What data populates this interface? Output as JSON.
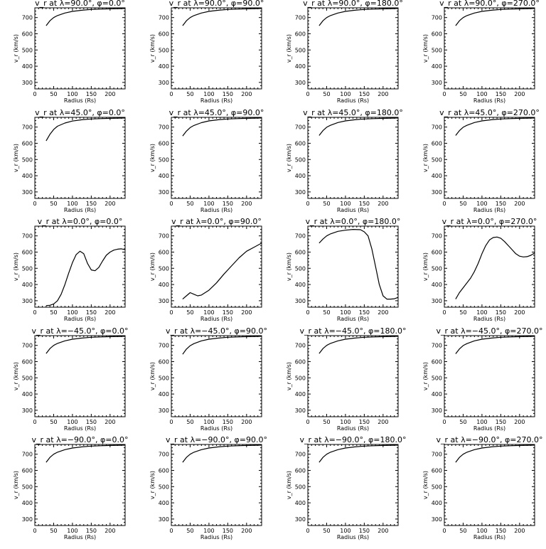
{
  "figure": {
    "panel_titles": [
      "v_r at λ=90.0°, φ=0.0°",
      "v_r at λ=90.0°, φ=90.0°",
      "v_r at λ=90.0°, φ=180.0°",
      "v_r at λ=90.0°, φ=270.0°",
      "v_r at λ=45.0°, φ=0.0°",
      "v_r at λ=45.0°, φ=90.0°",
      "v_r at λ=45.0°, φ=180.0°",
      "v_r at λ=45.0°, φ=270.0°",
      "v_r at λ=0.0°, φ=0.0°",
      "v_r at λ=0.0°, φ=90.0°",
      "v_r at λ=0.0°, φ=180.0°",
      "v_r at λ=0.0°, φ=270.0°",
      "v_r at λ=−45.0°, φ=0.0°",
      "v_r at λ=−45.0°, φ=90.0°",
      "v_r at λ=−45.0°, φ=180.0°",
      "v_r at λ=−45.0°, φ=270.0°",
      "v_r at λ=−90.0°, φ=0.0°",
      "v_r at λ=−90.0°, φ=90.0°",
      "v_r at λ=−90.0°, φ=180.0°",
      "v_r at λ=−90.0°, φ=270.0°"
    ]
  },
  "chart_data": [
    {
      "type": "line",
      "title": "v_r at λ=90.0°, φ=0.0°",
      "xlabel": "Radius (Rs)",
      "ylabel": "v_r (km/s)",
      "xlim": [
        0,
        240
      ],
      "ylim": [
        260,
        760
      ],
      "xticks": [
        0,
        50,
        100,
        150,
        200
      ],
      "yticks": [
        300,
        400,
        500,
        600,
        700
      ],
      "x": [
        30,
        40,
        50,
        60,
        80,
        100,
        125,
        150,
        175,
        200,
        225,
        240
      ],
      "y": [
        650,
        680,
        700,
        712,
        728,
        738,
        745,
        750,
        752,
        754,
        755,
        756
      ]
    },
    {
      "type": "line",
      "title": "v_r at λ=90.0°, φ=90.0°",
      "xlabel": "Radius (Rs)",
      "ylabel": "v_r (km/s)",
      "xlim": [
        0,
        240
      ],
      "ylim": [
        260,
        760
      ],
      "xticks": [
        0,
        50,
        100,
        150,
        200
      ],
      "yticks": [
        300,
        400,
        500,
        600,
        700
      ],
      "x": [
        30,
        40,
        50,
        60,
        80,
        100,
        125,
        150,
        175,
        200,
        225,
        240
      ],
      "y": [
        650,
        680,
        700,
        712,
        728,
        738,
        745,
        750,
        752,
        754,
        755,
        756
      ]
    },
    {
      "type": "line",
      "title": "v_r at λ=90.0°, φ=180.0°",
      "xlabel": "Radius (Rs)",
      "ylabel": "v_r (km/s)",
      "xlim": [
        0,
        240
      ],
      "ylim": [
        260,
        760
      ],
      "xticks": [
        0,
        50,
        100,
        150,
        200
      ],
      "yticks": [
        300,
        400,
        500,
        600,
        700
      ],
      "x": [
        30,
        40,
        50,
        60,
        80,
        100,
        125,
        150,
        175,
        200,
        225,
        240
      ],
      "y": [
        650,
        680,
        700,
        712,
        728,
        738,
        745,
        750,
        752,
        754,
        755,
        756
      ]
    },
    {
      "type": "line",
      "title": "v_r at λ=90.0°, φ=270.0°",
      "xlabel": "Radius (Rs)",
      "ylabel": "v_r (km/s)",
      "xlim": [
        0,
        240
      ],
      "ylim": [
        260,
        760
      ],
      "xticks": [
        0,
        50,
        100,
        150,
        200
      ],
      "yticks": [
        300,
        400,
        500,
        600,
        700
      ],
      "x": [
        30,
        40,
        50,
        60,
        80,
        100,
        125,
        150,
        175,
        200,
        225,
        240
      ],
      "y": [
        650,
        680,
        700,
        712,
        728,
        738,
        745,
        750,
        752,
        754,
        755,
        756
      ]
    },
    {
      "type": "line",
      "title": "v_r at λ=45.0°, φ=0.0°",
      "xlabel": "Radius (Rs)",
      "ylabel": "v_r (km/s)",
      "xlim": [
        0,
        240
      ],
      "ylim": [
        260,
        760
      ],
      "xticks": [
        0,
        50,
        100,
        150,
        200
      ],
      "yticks": [
        300,
        400,
        500,
        600,
        700
      ],
      "x": [
        30,
        40,
        50,
        60,
        80,
        100,
        125,
        150,
        175,
        200,
        225,
        240
      ],
      "y": [
        615,
        655,
        685,
        705,
        725,
        737,
        745,
        750,
        752,
        754,
        755,
        756
      ]
    },
    {
      "type": "line",
      "title": "v_r at λ=45.0°, φ=90.0°",
      "xlabel": "Radius (Rs)",
      "ylabel": "v_r (km/s)",
      "xlim": [
        0,
        240
      ],
      "ylim": [
        260,
        760
      ],
      "xticks": [
        0,
        50,
        100,
        150,
        200
      ],
      "yticks": [
        300,
        400,
        500,
        600,
        700
      ],
      "x": [
        30,
        40,
        50,
        60,
        80,
        100,
        125,
        150,
        175,
        200,
        225,
        240
      ],
      "y": [
        645,
        675,
        697,
        710,
        727,
        738,
        745,
        750,
        752,
        754,
        755,
        756
      ]
    },
    {
      "type": "line",
      "title": "v_r at λ=45.0°, φ=180.0°",
      "xlabel": "Radius (Rs)",
      "ylabel": "v_r (km/s)",
      "xlim": [
        0,
        240
      ],
      "ylim": [
        260,
        760
      ],
      "xticks": [
        0,
        50,
        100,
        150,
        200
      ],
      "yticks": [
        300,
        400,
        500,
        600,
        700
      ],
      "x": [
        30,
        40,
        50,
        60,
        80,
        100,
        125,
        150,
        175,
        200,
        225,
        240
      ],
      "y": [
        648,
        678,
        699,
        711,
        728,
        738,
        745,
        750,
        752,
        754,
        755,
        756
      ]
    },
    {
      "type": "line",
      "title": "v_r at λ=45.0°, φ=270.0°",
      "xlabel": "Radius (Rs)",
      "ylabel": "v_r (km/s)",
      "xlim": [
        0,
        240
      ],
      "ylim": [
        260,
        760
      ],
      "xticks": [
        0,
        50,
        100,
        150,
        200
      ],
      "yticks": [
        300,
        400,
        500,
        600,
        700
      ],
      "x": [
        30,
        40,
        50,
        60,
        80,
        100,
        125,
        150,
        175,
        200,
        225,
        240
      ],
      "y": [
        648,
        678,
        699,
        711,
        728,
        738,
        745,
        750,
        752,
        754,
        755,
        756
      ]
    },
    {
      "type": "line",
      "title": "v_r at λ=0.0°, φ=0.0°",
      "xlabel": "Radius (Rs)",
      "ylabel": "v_r (km/s)",
      "xlim": [
        0,
        240
      ],
      "ylim": [
        260,
        760
      ],
      "xticks": [
        0,
        50,
        100,
        150,
        200
      ],
      "yticks": [
        300,
        400,
        500,
        600,
        700
      ],
      "x": [
        30,
        40,
        50,
        60,
        70,
        80,
        90,
        100,
        110,
        120,
        130,
        140,
        150,
        160,
        170,
        180,
        190,
        200,
        210,
        220,
        230,
        240
      ],
      "y": [
        270,
        272,
        280,
        300,
        340,
        400,
        470,
        535,
        585,
        605,
        590,
        530,
        490,
        485,
        505,
        545,
        580,
        600,
        612,
        618,
        620,
        615
      ]
    },
    {
      "type": "line",
      "title": "v_r at λ=0.0°, φ=90.0°",
      "xlabel": "Radius (Rs)",
      "ylabel": "v_r (km/s)",
      "xlim": [
        0,
        240
      ],
      "ylim": [
        260,
        760
      ],
      "xticks": [
        0,
        50,
        100,
        150,
        200
      ],
      "yticks": [
        300,
        400,
        500,
        600,
        700
      ],
      "x": [
        30,
        40,
        50,
        60,
        70,
        80,
        100,
        120,
        140,
        160,
        180,
        200,
        220,
        240
      ],
      "y": [
        310,
        330,
        350,
        340,
        330,
        335,
        365,
        410,
        465,
        515,
        565,
        605,
        630,
        655
      ]
    },
    {
      "type": "line",
      "title": "v_r at λ=0.0°, φ=180.0°",
      "xlabel": "Radius (Rs)",
      "ylabel": "v_r (km/s)",
      "xlim": [
        0,
        240
      ],
      "ylim": [
        260,
        760
      ],
      "xticks": [
        0,
        50,
        100,
        150,
        200
      ],
      "yticks": [
        300,
        400,
        500,
        600,
        700
      ],
      "x": [
        30,
        40,
        50,
        60,
        80,
        100,
        120,
        140,
        150,
        160,
        170,
        180,
        190,
        200,
        210,
        220,
        230,
        240
      ],
      "y": [
        655,
        680,
        700,
        712,
        728,
        735,
        740,
        738,
        725,
        700,
        620,
        510,
        400,
        330,
        310,
        310,
        312,
        320
      ]
    },
    {
      "type": "line",
      "title": "v_r at λ=0.0°, φ=270.0°",
      "xlabel": "Radius (Rs)",
      "ylabel": "v_r (km/s)",
      "xlim": [
        0,
        240
      ],
      "ylim": [
        260,
        760
      ],
      "xticks": [
        0,
        50,
        100,
        150,
        200
      ],
      "yticks": [
        300,
        400,
        500,
        600,
        700
      ],
      "x": [
        30,
        40,
        50,
        60,
        70,
        80,
        90,
        100,
        110,
        120,
        130,
        140,
        150,
        160,
        170,
        180,
        190,
        200,
        210,
        220,
        230,
        240
      ],
      "y": [
        310,
        350,
        380,
        410,
        440,
        480,
        530,
        590,
        640,
        675,
        690,
        693,
        685,
        665,
        640,
        615,
        590,
        575,
        570,
        572,
        580,
        595
      ]
    },
    {
      "type": "line",
      "title": "v_r at λ=−45.0°, φ=0.0°",
      "xlabel": "Radius (Rs)",
      "ylabel": "v_r (km/s)",
      "xlim": [
        0,
        240
      ],
      "ylim": [
        260,
        760
      ],
      "xticks": [
        0,
        50,
        100,
        150,
        200
      ],
      "yticks": [
        300,
        400,
        500,
        600,
        700
      ],
      "x": [
        30,
        40,
        50,
        60,
        80,
        100,
        125,
        150,
        175,
        200,
        225,
        240
      ],
      "y": [
        650,
        680,
        700,
        712,
        728,
        738,
        745,
        750,
        752,
        754,
        755,
        756
      ]
    },
    {
      "type": "line",
      "title": "v_r at λ=−45.0°, φ=90.0°",
      "xlabel": "Radius (Rs)",
      "ylabel": "v_r (km/s)",
      "xlim": [
        0,
        240
      ],
      "ylim": [
        260,
        760
      ],
      "xticks": [
        0,
        50,
        100,
        150,
        200
      ],
      "yticks": [
        300,
        400,
        500,
        600,
        700
      ],
      "x": [
        30,
        40,
        50,
        60,
        80,
        100,
        125,
        150,
        175,
        200,
        225,
        240
      ],
      "y": [
        645,
        677,
        698,
        711,
        728,
        738,
        745,
        750,
        752,
        754,
        755,
        756
      ]
    },
    {
      "type": "line",
      "title": "v_r at λ=−45.0°, φ=180.0°",
      "xlabel": "Radius (Rs)",
      "ylabel": "v_r (km/s)",
      "xlim": [
        0,
        240
      ],
      "ylim": [
        260,
        760
      ],
      "xticks": [
        0,
        50,
        100,
        150,
        200
      ],
      "yticks": [
        300,
        400,
        500,
        600,
        700
      ],
      "x": [
        30,
        40,
        50,
        60,
        80,
        100,
        125,
        150,
        175,
        200,
        225,
        240
      ],
      "y": [
        650,
        680,
        700,
        712,
        728,
        738,
        745,
        750,
        752,
        754,
        755,
        756
      ]
    },
    {
      "type": "line",
      "title": "v_r at λ=−45.0°, φ=270.0°",
      "xlabel": "Radius (Rs)",
      "ylabel": "v_r (km/s)",
      "xlim": [
        0,
        240
      ],
      "ylim": [
        260,
        760
      ],
      "xticks": [
        0,
        50,
        100,
        150,
        200
      ],
      "yticks": [
        300,
        400,
        500,
        600,
        700
      ],
      "x": [
        30,
        40,
        50,
        60,
        80,
        100,
        125,
        150,
        175,
        200,
        225,
        240
      ],
      "y": [
        648,
        678,
        699,
        711,
        728,
        738,
        745,
        750,
        752,
        754,
        755,
        756
      ]
    },
    {
      "type": "line",
      "title": "v_r at λ=−90.0°, φ=0.0°",
      "xlabel": "Radius (Rs)",
      "ylabel": "v_r (km/s)",
      "xlim": [
        0,
        240
      ],
      "ylim": [
        260,
        760
      ],
      "xticks": [
        0,
        50,
        100,
        150,
        200
      ],
      "yticks": [
        300,
        400,
        500,
        600,
        700
      ],
      "x": [
        30,
        40,
        50,
        60,
        80,
        100,
        125,
        150,
        175,
        200,
        225,
        240
      ],
      "y": [
        650,
        680,
        700,
        712,
        728,
        738,
        745,
        750,
        752,
        754,
        755,
        756
      ]
    },
    {
      "type": "line",
      "title": "v_r at λ=−90.0°, φ=90.0°",
      "xlabel": "Radius (Rs)",
      "ylabel": "v_r (km/s)",
      "xlim": [
        0,
        240
      ],
      "ylim": [
        260,
        760
      ],
      "xticks": [
        0,
        50,
        100,
        150,
        200
      ],
      "yticks": [
        300,
        400,
        500,
        600,
        700
      ],
      "x": [
        30,
        40,
        50,
        60,
        80,
        100,
        125,
        150,
        175,
        200,
        225,
        240
      ],
      "y": [
        650,
        680,
        700,
        712,
        728,
        738,
        745,
        750,
        752,
        754,
        755,
        756
      ]
    },
    {
      "type": "line",
      "title": "v_r at λ=−90.0°, φ=180.0°",
      "xlabel": "Radius (Rs)",
      "ylabel": "v_r (km/s)",
      "xlim": [
        0,
        240
      ],
      "ylim": [
        260,
        760
      ],
      "xticks": [
        0,
        50,
        100,
        150,
        200
      ],
      "yticks": [
        300,
        400,
        500,
        600,
        700
      ],
      "x": [
        30,
        40,
        50,
        60,
        80,
        100,
        125,
        150,
        175,
        200,
        225,
        240
      ],
      "y": [
        650,
        680,
        700,
        712,
        728,
        738,
        745,
        750,
        752,
        754,
        755,
        756
      ]
    },
    {
      "type": "line",
      "title": "v_r at λ=−90.0°, φ=270.0°",
      "xlabel": "Radius (Rs)",
      "ylabel": "v_r (km/s)",
      "xlim": [
        0,
        240
      ],
      "ylim": [
        260,
        760
      ],
      "xticks": [
        0,
        50,
        100,
        150,
        200
      ],
      "yticks": [
        300,
        400,
        500,
        600,
        700
      ],
      "x": [
        30,
        40,
        50,
        60,
        80,
        100,
        125,
        150,
        175,
        200,
        225,
        240
      ],
      "y": [
        650,
        680,
        700,
        712,
        728,
        738,
        745,
        750,
        752,
        754,
        755,
        756
      ]
    }
  ]
}
